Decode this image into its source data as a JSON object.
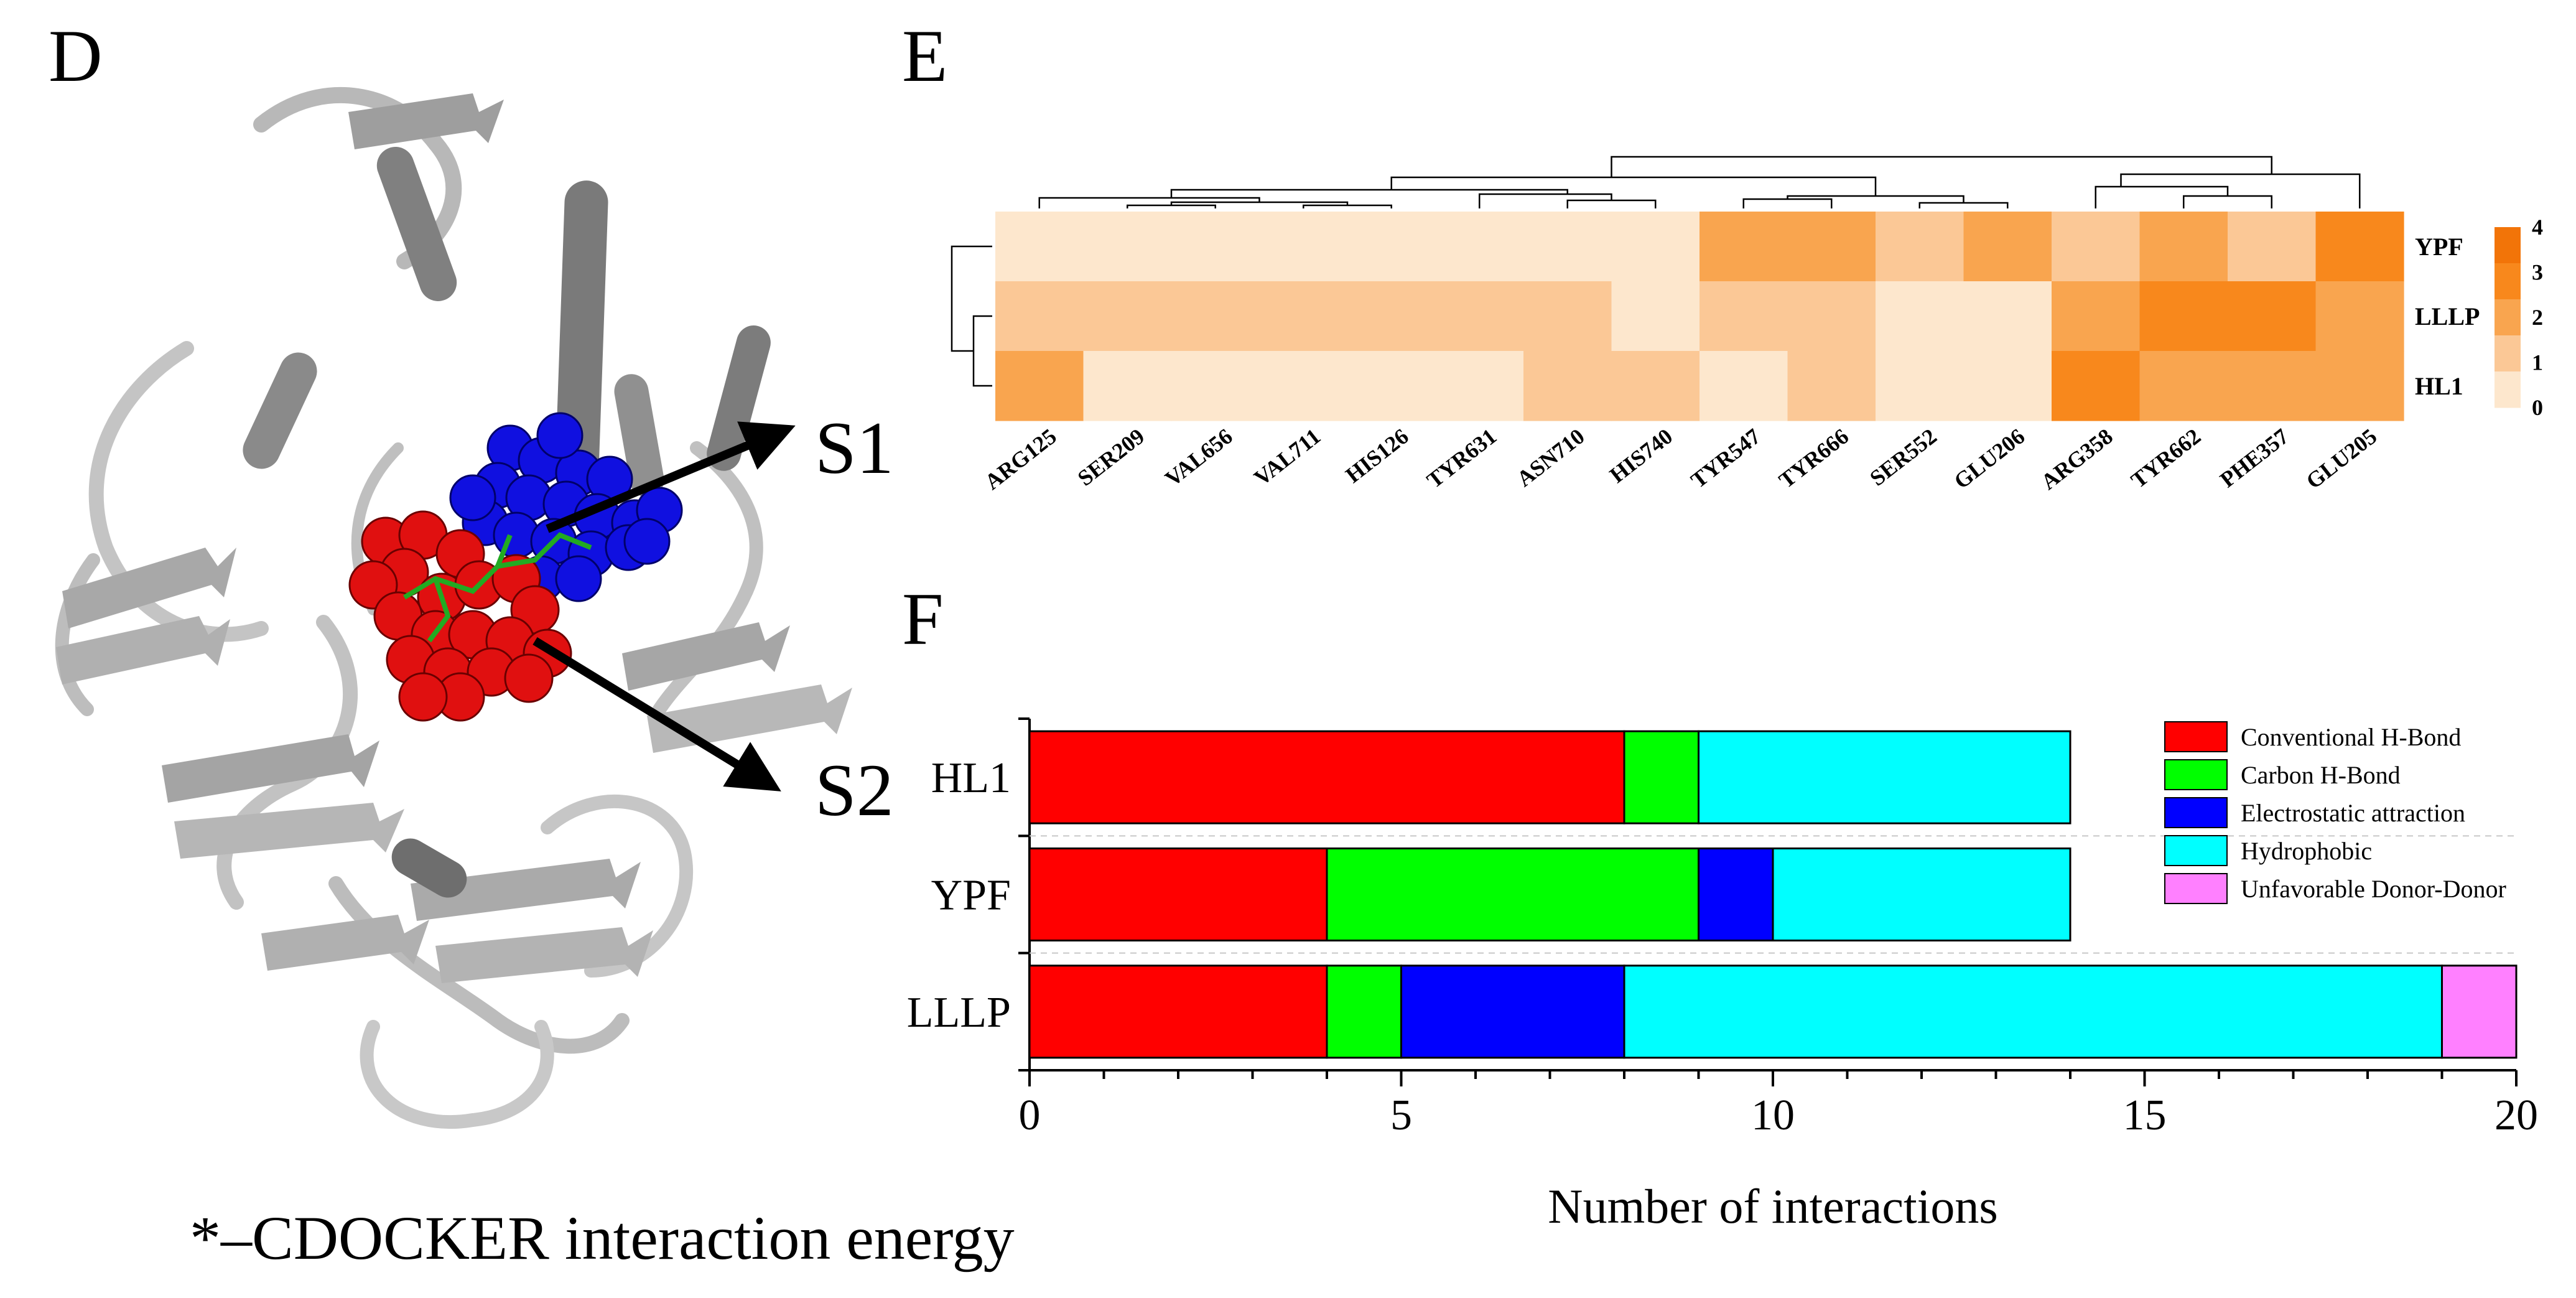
{
  "panels": {
    "d": "D",
    "e": "E",
    "f": "F"
  },
  "protein": {
    "site1_label": "S1",
    "site2_label": "S2",
    "site1_color": "#1010e0",
    "site2_color": "#e01010",
    "ligand_color": "#22aa22",
    "caption": "*–CDOCKER interaction energy"
  },
  "chart_data": [
    {
      "type": "heatmap",
      "columns": [
        "ARG125",
        "SER209",
        "VAL656",
        "VAL711",
        "HIS126",
        "TYR631",
        "ASN710",
        "HIS740",
        "TYR547",
        "TYR666",
        "SER552",
        "GLU206",
        "ARG358",
        "TYR662",
        "PHE357",
        "GLU205"
      ],
      "rows": [
        "YPF",
        "LLLP",
        "HL1"
      ],
      "values": [
        [
          0,
          0,
          0,
          0,
          0,
          0,
          0,
          0,
          2,
          2,
          1,
          2,
          1,
          2,
          1,
          3
        ],
        [
          1,
          1,
          1,
          1,
          1,
          1,
          1,
          0,
          1,
          1,
          0,
          0,
          2,
          3,
          3,
          2
        ],
        [
          2,
          0,
          0,
          0,
          0,
          0,
          1,
          1,
          0,
          1,
          0,
          0,
          3,
          2,
          2,
          2
        ]
      ],
      "colorbar": {
        "min": 0,
        "max": 4,
        "ticks": [
          "4",
          "3",
          "2",
          "1",
          "0"
        ]
      },
      "colors": [
        "#fde7cd",
        "#fbc896",
        "#f9a54f",
        "#f8881c",
        "#f27408"
      ]
    },
    {
      "type": "bar",
      "orientation": "horizontal",
      "stacked": true,
      "categories": [
        "HL1",
        "YPF",
        "LLLP"
      ],
      "series": [
        {
          "name": "Conventional H-Bond",
          "color": "#ff0000",
          "values": [
            8,
            4,
            4
          ]
        },
        {
          "name": "Carbon H-Bond",
          "color": "#00ff00",
          "values": [
            1,
            5,
            1
          ]
        },
        {
          "name": "Electrostatic attraction",
          "color": "#0000ff",
          "values": [
            0,
            1,
            3
          ]
        },
        {
          "name": "Hydrophobic",
          "color": "#00ffff",
          "values": [
            5,
            4,
            11
          ]
        },
        {
          "name": "Unfavorable Donor-Donor",
          "color": "#ff80ff",
          "values": [
            0,
            0,
            1
          ]
        }
      ],
      "xlabel": "Number of interactions",
      "xlim": [
        0,
        20
      ],
      "xticks": [
        "0",
        "5",
        "10",
        "15",
        "20"
      ],
      "legend_position": "top-right"
    }
  ]
}
